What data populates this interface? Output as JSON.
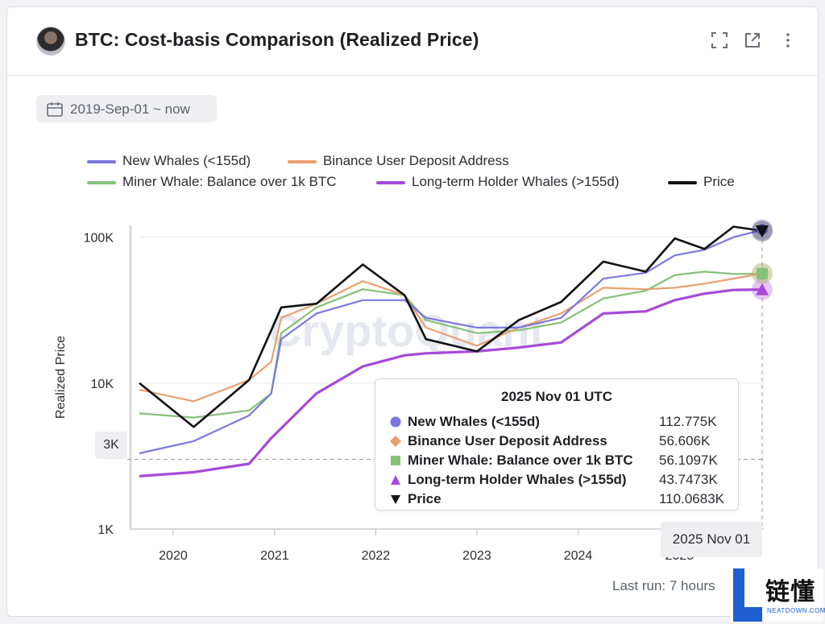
{
  "header": {
    "title": "BTC: Cost-basis Comparison (Realized Price)",
    "icons": [
      "expand-icon",
      "external-link-icon",
      "more-vert-icon"
    ]
  },
  "date_range": {
    "label": "2019-Sep-01 ~ now"
  },
  "legend": [
    {
      "label": "New Whales (<155d)",
      "color": "#7b78e0"
    },
    {
      "label": "Binance User Deposit Address",
      "color": "#e8a070"
    },
    {
      "label": "Miner Whale: Balance over 1k BTC",
      "color": "#86c17a"
    },
    {
      "label": "Long-term Holder Whales (>155d)",
      "color": "#a64ad9"
    },
    {
      "label": "Price",
      "color": "#111111"
    }
  ],
  "watermark": "CryptoQuant",
  "chart_data": {
    "type": "line",
    "ylabel": "Realized Price",
    "xlabel": "",
    "yscale": "log",
    "ylim": [
      1000,
      200000
    ],
    "y_ticks": [
      "1K",
      "10K",
      "100K"
    ],
    "x_ticks": [
      "2020",
      "2021",
      "2022",
      "2023",
      "2024",
      "2025"
    ],
    "x_range": [
      "2019-09-01",
      "2025-11-01"
    ],
    "grid": "horizontal",
    "series": [
      {
        "name": "New Whales (<155d)",
        "color": "#7b78e0",
        "x": [
          "2019-09-01",
          "2020-03-15",
          "2020-10-01",
          "2020-12-20",
          "2021-01-25",
          "2021-06-01",
          "2021-11-15",
          "2022-04-15",
          "2022-07-01",
          "2023-01-01",
          "2023-06-01",
          "2023-11-01",
          "2024-04-01",
          "2024-09-01",
          "2024-12-15",
          "2025-04-01",
          "2025-07-15",
          "2025-11-01"
        ],
        "values": [
          3300,
          4000,
          6000,
          8500,
          20000,
          30000,
          37000,
          37000,
          28000,
          24000,
          24000,
          28000,
          52000,
          57000,
          75000,
          82000,
          100000,
          112775
        ]
      },
      {
        "name": "Binance User Deposit Address",
        "color": "#e8a070",
        "x": [
          "2019-09-01",
          "2020-03-15",
          "2020-10-01",
          "2020-12-20",
          "2021-01-25",
          "2021-06-01",
          "2021-11-15",
          "2022-04-15",
          "2022-07-01",
          "2023-01-01",
          "2023-06-01",
          "2023-11-01",
          "2024-04-01",
          "2024-09-01",
          "2024-12-15",
          "2025-04-01",
          "2025-07-15",
          "2025-11-01"
        ],
        "values": [
          9000,
          7500,
          10500,
          14000,
          28000,
          35000,
          50000,
          40000,
          24000,
          18000,
          24000,
          30000,
          45000,
          44000,
          45000,
          48000,
          52000,
          56606
        ]
      },
      {
        "name": "Miner Whale: Balance over 1k BTC",
        "color": "#86c17a",
        "x": [
          "2019-09-01",
          "2020-03-15",
          "2020-10-01",
          "2020-12-20",
          "2021-01-25",
          "2021-06-01",
          "2021-11-15",
          "2022-04-15",
          "2022-07-01",
          "2023-01-01",
          "2023-06-01",
          "2023-11-01",
          "2024-04-01",
          "2024-09-01",
          "2024-12-15",
          "2025-04-01",
          "2025-07-15",
          "2025-11-01"
        ],
        "values": [
          6200,
          5800,
          6500,
          8500,
          22000,
          33000,
          44000,
          40000,
          27000,
          22000,
          23000,
          26000,
          38000,
          43000,
          55000,
          58000,
          56000,
          56110
        ]
      },
      {
        "name": "Long-term Holder Whales (>155d)",
        "color": "#a64ad9",
        "x": [
          "2019-09-01",
          "2020-03-15",
          "2020-10-01",
          "2020-12-20",
          "2021-01-25",
          "2021-06-01",
          "2021-11-15",
          "2022-04-15",
          "2022-07-01",
          "2023-01-01",
          "2023-06-01",
          "2023-11-01",
          "2024-04-01",
          "2024-09-01",
          "2024-12-15",
          "2025-04-01",
          "2025-07-15",
          "2025-11-01"
        ],
        "values": [
          2300,
          2450,
          2800,
          4200,
          4900,
          8500,
          13000,
          15500,
          16000,
          16500,
          17500,
          19000,
          30000,
          31000,
          37000,
          41000,
          43500,
          43747
        ]
      },
      {
        "name": "Price",
        "color": "#111111",
        "x": [
          "2019-09-01",
          "2020-03-15",
          "2020-10-01",
          "2020-12-20",
          "2021-01-25",
          "2021-06-01",
          "2021-11-15",
          "2022-04-15",
          "2022-07-01",
          "2023-01-01",
          "2023-06-01",
          "2023-11-01",
          "2024-04-01",
          "2024-09-01",
          "2024-12-15",
          "2025-04-01",
          "2025-07-15",
          "2025-11-01"
        ],
        "values": [
          10000,
          5000,
          10500,
          23000,
          33000,
          35000,
          65000,
          40000,
          20000,
          16500,
          27000,
          36000,
          68000,
          58000,
          98000,
          83000,
          118000,
          110068
        ]
      }
    ],
    "tooltip": {
      "date": "2025 Nov 01 UTC",
      "rows": [
        {
          "label": "New Whales (<155d)",
          "value": "112.775K",
          "marker": "circle",
          "color": "#7b78e0"
        },
        {
          "label": "Binance User Deposit Address",
          "value": "56.606K",
          "marker": "diamond",
          "color": "#e8a070"
        },
        {
          "label": "Miner Whale: Balance over 1k BTC",
          "value": "56.1097K",
          "marker": "square",
          "color": "#86c17a"
        },
        {
          "label": "Long-term Holder Whales (>155d)",
          "value": "43.7473K",
          "marker": "triangle",
          "color": "#a64ad9"
        },
        {
          "label": "Price",
          "value": "110.0683K",
          "marker": "triangle-down",
          "color": "#111111"
        }
      ]
    },
    "crosshair": {
      "x_label": "2025 Nov 01",
      "y_label": "3K"
    }
  },
  "footer": {
    "last_run": "Last run: 7 hours"
  },
  "badge": {
    "text": "链懂",
    "sub": "NEATDOWN.COM"
  }
}
